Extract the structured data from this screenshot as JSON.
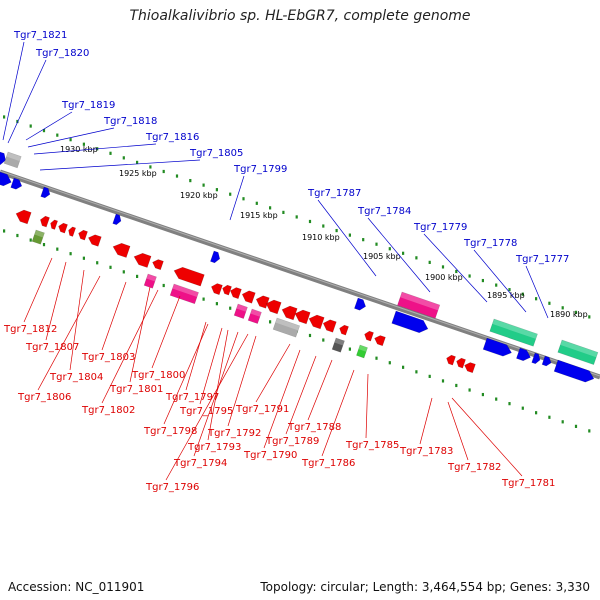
{
  "title": "Thioalkalivibrio sp. HL-EbGR7, complete genome",
  "footer": {
    "accession": "Accession: NC_011901",
    "summary": "Topology: circular; Length: 3,464,554 bp; Genes: 3,330"
  },
  "kbp_ticks": [
    "1930 kbp",
    "1925 kbp",
    "1920 kbp",
    "1915 kbp",
    "1910 kbp",
    "1905 kbp",
    "1900 kbp",
    "1895 kbp",
    "1890 kbp"
  ],
  "genes_top": [
    "Tgr7_1821",
    "Tgr7_1820",
    "Tgr7_1819",
    "Tgr7_1818",
    "Tgr7_1816",
    "Tgr7_1805",
    "Tgr7_1799",
    "Tgr7_1787",
    "Tgr7_1784",
    "Tgr7_1779",
    "Tgr7_1778",
    "Tgr7_1777"
  ],
  "genes_bottom": [
    "Tgr7_1812",
    "Tgr7_1807",
    "Tgr7_1804",
    "Tgr7_1806",
    "Tgr7_1803",
    "Tgr7_1801",
    "Tgr7_1802",
    "Tgr7_1800",
    "Tgr7_1797",
    "Tgr7_1798",
    "Tgr7_1795",
    "Tgr7_1793",
    "Tgr7_1794",
    "Tgr7_1796",
    "Tgr7_1792",
    "Tgr7_1791",
    "Tgr7_1790",
    "Tgr7_1789",
    "Tgr7_1788",
    "Tgr7_1786",
    "Tgr7_1785",
    "Tgr7_1783",
    "Tgr7_1782",
    "Tgr7_1781"
  ],
  "colors": {
    "forward_label": "#0000cc",
    "reverse_label": "#dd0000",
    "backbone": "#808080",
    "tick": "#228b22",
    "cds_forward": "#0000ee",
    "cds_reverse": "#ee0000",
    "rna_magenta": "#ee1188",
    "rna_green": "#22cc88",
    "pseudo_gray": "#aaaaaa"
  }
}
